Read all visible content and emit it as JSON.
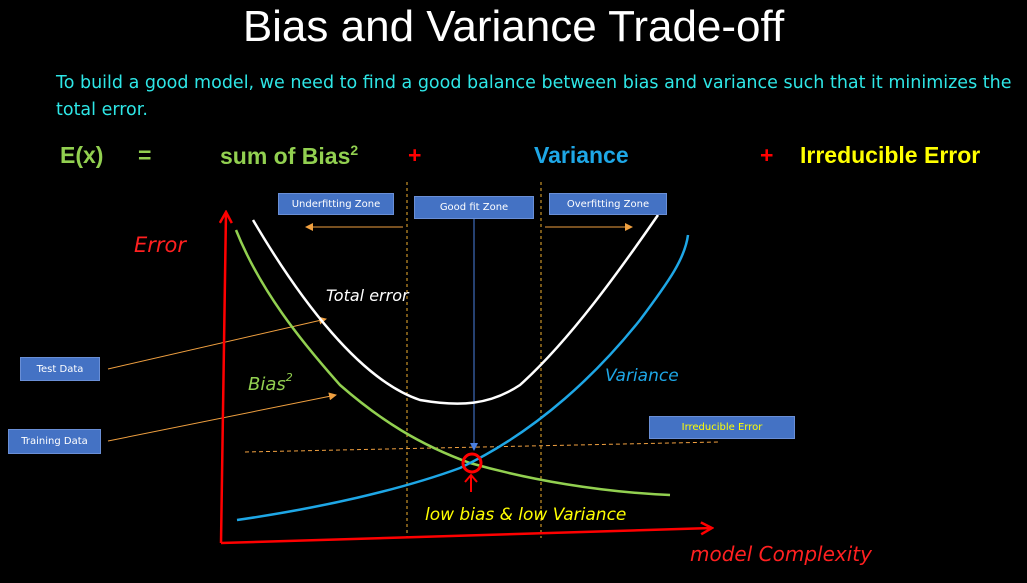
{
  "title": "Bias and Variance Trade-off",
  "intro": "To build a good model, we need to find a good balance between bias and variance such that it minimizes the total error.",
  "equation": {
    "lhs": "E(x)",
    "equals": "=",
    "bias_text": "sum of Bias",
    "bias_exp": "2",
    "plus1": "+",
    "variance": "Variance",
    "plus2": "+",
    "irreducible": "Irreducible Error"
  },
  "boxes": {
    "underfitting": "Underfitting  Zone",
    "good_fit": "Good fit Zone",
    "overfitting": "Overfitting  Zone",
    "test_data": "Test Data",
    "training_data": "Training Data",
    "irreducible_error": "Irreducible Error"
  },
  "annotations": {
    "error": "Error",
    "total_error": "Total error",
    "bias": "Bias",
    "bias_exp": "2",
    "variance": "Variance",
    "low_bias_low_variance": "low bias & low Variance",
    "model_complexity": "model Complexity"
  },
  "colors": {
    "background": "#000000",
    "intro": "#2ee6e6",
    "lhs_bias": "#92d050",
    "operator_plus": "#ff0000",
    "variance": "#1ea7e6",
    "irreducible": "#ffff00",
    "box_fill": "#4472c4",
    "axis": "#ff0000",
    "zone_line": "#f0b030",
    "total_curve": "#ffffff"
  }
}
